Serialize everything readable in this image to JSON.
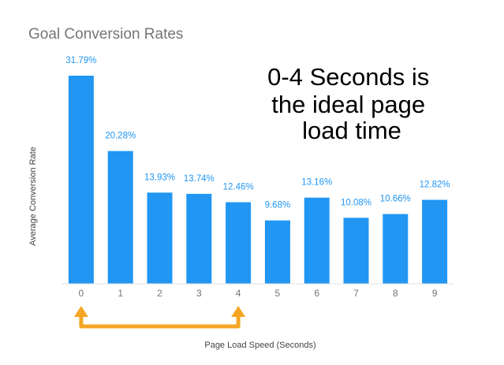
{
  "chart_data": {
    "type": "bar",
    "title": "Goal Conversion Rates",
    "xlabel": "Page Load Speed (Seconds)",
    "ylabel": "Average Conversion Rate",
    "categories": [
      "0",
      "1",
      "2",
      "3",
      "4",
      "5",
      "6",
      "7",
      "8",
      "9"
    ],
    "values": [
      31.79,
      20.28,
      13.93,
      13.74,
      12.46,
      9.68,
      13.16,
      10.08,
      10.66,
      12.82
    ],
    "data_labels": [
      "31.79%",
      "20.28%",
      "13.93%",
      "13.74%",
      "12.46%",
      "9.68%",
      "13.16%",
      "10.08%",
      "10.66%",
      "12.82%"
    ],
    "ylim": [
      0,
      31.79
    ],
    "grid": false,
    "legend": "none",
    "annotations": [
      {
        "text_lines": [
          "0-4 Seconds is",
          "the ideal page",
          "load time"
        ],
        "bracket_from": "0",
        "bracket_to": "4"
      }
    ],
    "colors": {
      "bar": "#2196f3",
      "data_label": "#2196f3",
      "bracket": "#f5a623",
      "title": "#757575"
    }
  }
}
